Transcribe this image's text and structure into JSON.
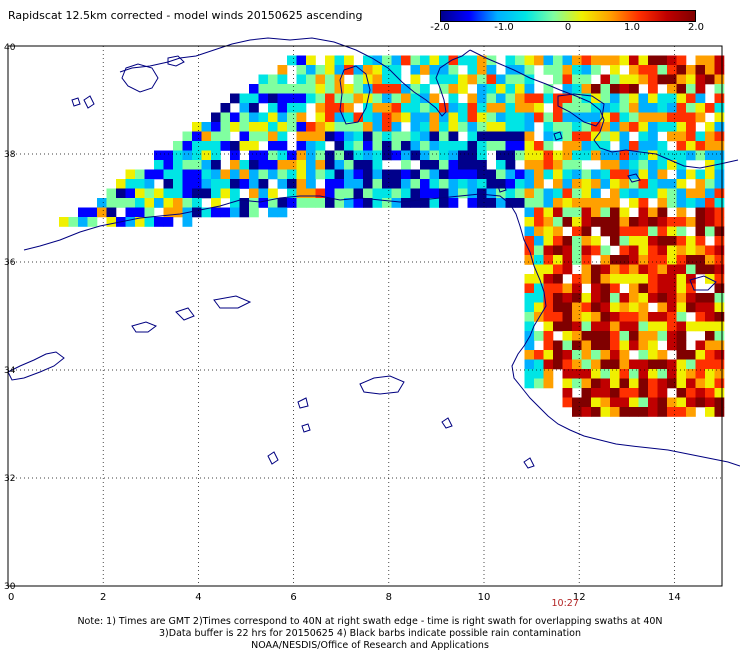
{
  "title": "Rapidscat 12.5km corrected - model winds 20150625 ascending",
  "colorbar": {
    "labels": [
      "-2.0",
      "-1.0",
      "0",
      "1.0",
      "2.0"
    ],
    "values": [
      -2.0,
      -1.0,
      0,
      1.0,
      2.0
    ],
    "colors": [
      "#00008b",
      "#0000ff",
      "#00b0ff",
      "#00e5e5",
      "#80ffa0",
      "#f0f000",
      "#ffa000",
      "#ff3000",
      "#c00000",
      "#800000"
    ]
  },
  "axes": {
    "x_ticks": [
      "0",
      "2",
      "4",
      "6",
      "8",
      "10",
      "12",
      "14"
    ],
    "x_values": [
      0,
      2,
      4,
      6,
      8,
      10,
      12,
      14
    ],
    "y_ticks": [
      "40",
      "38",
      "36",
      "34",
      "32",
      "30"
    ],
    "y_values": [
      40,
      38,
      36,
      34,
      32,
      30
    ],
    "xlim": [
      0,
      15
    ],
    "ylim": [
      30,
      40
    ]
  },
  "swath_time": {
    "label": "10:27",
    "lon": 12
  },
  "notes": [
    "Note: 1) Times are GMT 2)Times correspond to 40N at right swath edge - time is right swath for overlapping swaths at 40N",
    "3)Data buffer is 22 hrs for 20150625 4) Black barbs indicate possible rain contamination",
    "NOAA/NESDIS/Office of Research and Applications"
  ]
}
